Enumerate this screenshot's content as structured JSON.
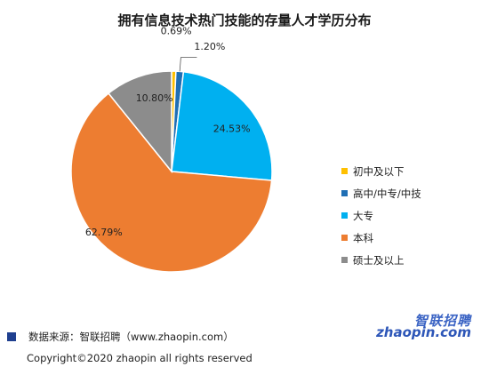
{
  "title": "拥有信息技术热门技能的存量人才学历分布",
  "chart_data": {
    "type": "pie",
    "categories": [
      "初中及以下",
      "高中/中专/中技",
      "大专",
      "本科",
      "硕士及以上"
    ],
    "values": [
      0.69,
      1.2,
      24.53,
      62.79,
      10.8
    ],
    "value_labels": [
      "0.69%",
      "1.20%",
      "24.53%",
      "62.79%",
      "10.80%"
    ],
    "colors": [
      "#FFC000",
      "#1F6FB5",
      "#00B0F0",
      "#ED7D31",
      "#8C8C8C"
    ],
    "start_angle_deg": 0,
    "direction": "clockwise",
    "legend_position": "right"
  },
  "source_text": "数据来源：智联招聘（www.zhaopin.com）",
  "copyright": "Copyright©2020 zhaopin all rights reserved",
  "logo": {
    "top_text": "智联招聘",
    "bottom_text": "zhaopin.com"
  }
}
